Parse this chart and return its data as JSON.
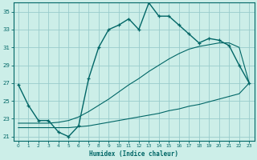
{
  "xlabel": "Humidex (Indice chaleur)",
  "background_color": "#cceee8",
  "grid_color": "#99cccc",
  "line_color": "#006666",
  "xlim": [
    -0.5,
    23.5
  ],
  "ylim": [
    20.5,
    36.0
  ],
  "yticks": [
    21,
    23,
    25,
    27,
    29,
    31,
    33,
    35
  ],
  "xticks": [
    0,
    1,
    2,
    3,
    4,
    5,
    6,
    7,
    8,
    9,
    10,
    11,
    12,
    13,
    14,
    15,
    16,
    17,
    18,
    19,
    20,
    21,
    22,
    23
  ],
  "humidex_curve": [
    26.8,
    24.5,
    22.8,
    22.8,
    21.5,
    21.0,
    22.2,
    27.5,
    31.0,
    33.0,
    33.5,
    34.2,
    33.0,
    36.0,
    34.5,
    34.5,
    33.5,
    32.5,
    31.5,
    32.0,
    31.8,
    31.2,
    29.0,
    27.0
  ],
  "min_curve": [
    22.0,
    22.0,
    22.0,
    22.0,
    22.0,
    22.0,
    22.1,
    22.2,
    22.4,
    22.6,
    22.8,
    23.0,
    23.2,
    23.4,
    23.6,
    23.9,
    24.1,
    24.4,
    24.6,
    24.9,
    25.2,
    25.5,
    25.8,
    27.0
  ],
  "max_curve": [
    22.5,
    22.5,
    22.5,
    22.5,
    22.6,
    22.8,
    23.2,
    23.8,
    24.5,
    25.2,
    26.0,
    26.8,
    27.5,
    28.3,
    29.0,
    29.7,
    30.3,
    30.8,
    31.1,
    31.3,
    31.5,
    31.5,
    31.0,
    27.0
  ]
}
